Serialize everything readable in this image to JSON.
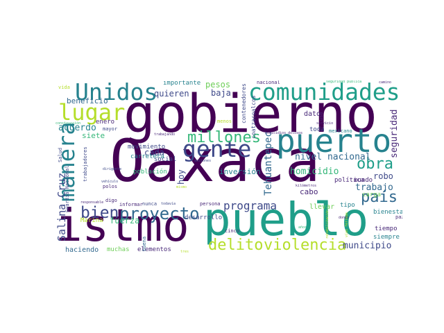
{
  "palette": {
    "dark_purple": "#440154",
    "purple": "#482878",
    "indigo": "#3e4989",
    "blue": "#31688e",
    "teal": "#26828e",
    "green_teal": "#1f9e89",
    "green": "#35b779",
    "light_green": "#6ece58",
    "yellow_green": "#b5de2b"
  },
  "words": [
    {
      "text": "Oaxaca",
      "color": "#440154"
    },
    {
      "text": "gobierno",
      "color": "#440154"
    },
    {
      "text": "istmo",
      "color": "#440154"
    },
    {
      "text": "pueblo",
      "color": "#1f9e89"
    },
    {
      "text": "comunidades",
      "color": "#1f9e89"
    },
    {
      "text": "puerto",
      "color": "#26828e"
    },
    {
      "text": "Unidos",
      "color": "#26828e"
    },
    {
      "text": "lugar",
      "color": "#b5de2b"
    },
    {
      "text": "gente",
      "color": "#3e4989"
    },
    {
      "text": "manera",
      "color": "#26828e"
    },
    {
      "text": "proyecto",
      "color": "#31688e"
    },
    {
      "text": "bien",
      "color": "#3e4989"
    },
    {
      "text": "millones",
      "color": "#35b779"
    },
    {
      "text": "violencia",
      "color": "#b5de2b"
    },
    {
      "text": "delito",
      "color": "#b5de2b"
    },
    {
      "text": "obra",
      "color": "#1f9e89"
    },
    {
      "text": "país",
      "color": "#31688e"
    },
    {
      "text": "programa",
      "color": "#3e4989"
    },
    {
      "text": "Salina Cruz",
      "color": "#3e4989"
    },
    {
      "text": "Tehuantepec",
      "color": "#31688e"
    },
    {
      "text": "nivel nacional",
      "color": "#31688e"
    },
    {
      "text": "seguridad",
      "color": "#482878"
    },
    {
      "text": "municipio",
      "color": "#3e4989"
    },
    {
      "text": "trabajo",
      "color": "#31688e"
    },
    {
      "text": "homicidio",
      "color": "#35b779"
    },
    {
      "text": "acuerdo",
      "color": "#26828e"
    },
    {
      "text": "beneficio",
      "color": "#31688e"
    },
    {
      "text": "fuerza",
      "color": "#35b779"
    },
    {
      "text": "quieren",
      "color": "#3e4989"
    },
    {
      "text": "baja",
      "color": "#3e4989"
    },
    {
      "text": "pesos",
      "color": "#6ece58"
    },
    {
      "text": "cada",
      "color": "#3e4989"
    },
    {
      "text": "hoy",
      "color": "#3e4989"
    },
    {
      "text": "robo",
      "color": "#3e4989"
    },
    {
      "text": "cabo",
      "color": "#482878"
    },
    {
      "text": "inversión",
      "color": "#26828e"
    },
    {
      "text": "importante",
      "color": "#26828e"
    },
    {
      "text": "social",
      "color": "#3e4989"
    },
    {
      "text": "movimiento",
      "color": "#3e4989"
    },
    {
      "text": "carretera",
      "color": "#26828e"
    },
    {
      "text": "siete",
      "color": "#35b779"
    },
    {
      "text": "enero",
      "color": "#482878"
    },
    {
      "text": "mayor",
      "color": "#3e4989"
    },
    {
      "text": "dato",
      "color": "#482878"
    },
    {
      "text": "toda",
      "color": "#3e4989"
    },
    {
      "text": "mexicano",
      "color": "#26828e"
    },
    {
      "text": "política",
      "color": "#482878"
    },
    {
      "text": "media",
      "color": "#3e4989"
    },
    {
      "text": "mundo",
      "color": "#482878"
    },
    {
      "text": "llevar",
      "color": "#6ece58"
    },
    {
      "text": "tipo",
      "color": "#26828e"
    },
    {
      "text": "carga",
      "color": "#6ece58"
    },
    {
      "text": "bienestar",
      "color": "#26828e"
    },
    {
      "text": "paz",
      "color": "#482878"
    },
    {
      "text": "tiempo",
      "color": "#482878"
    },
    {
      "text": "siempre",
      "color": "#26828e"
    },
    {
      "text": "población",
      "color": "#35b779"
    },
    {
      "text": "informar",
      "color": "#482878"
    },
    {
      "text": "nunca",
      "color": "#3e4989"
    },
    {
      "text": "todavía",
      "color": "#3e4989"
    },
    {
      "text": "desarrollo",
      "color": "#3e4989"
    },
    {
      "text": "persona",
      "color": "#482878"
    },
    {
      "text": "cinco",
      "color": "#482878"
    },
    {
      "text": "haciendo",
      "color": "#31688e"
    },
    {
      "text": "muchas",
      "color": "#6ece58"
    },
    {
      "text": "elementos",
      "color": "#482878"
    },
    {
      "text": "polos",
      "color": "#482878"
    },
    {
      "text": "digo",
      "color": "#482878"
    },
    {
      "text": "Marina",
      "color": "#b5de2b"
    },
    {
      "text": "Salud",
      "color": "#3e4989"
    },
    {
      "text": "trabajadores",
      "color": "#3e4989"
    },
    {
      "text": "Guardia Nacional",
      "color": "#3e4989"
    },
    {
      "text": "buena",
      "color": "#31688e"
    },
    {
      "text": "contenedores",
      "color": "#3e4989"
    },
    {
      "text": "coatzacoalcos",
      "color": "#3e4989"
    },
    {
      "text": "uso",
      "color": "#482878"
    },
    {
      "text": "nacional",
      "color": "#482878"
    },
    {
      "text": "menos",
      "color": "#b5de2b"
    },
    {
      "text": "vida",
      "color": "#b5de2b"
    },
    {
      "text": "camino",
      "color": "#482878"
    },
    {
      "text": "seguridad pública",
      "color": "#35b779"
    },
    {
      "text": "construcción",
      "color": "#35b779"
    },
    {
      "text": "trabajando",
      "color": "#482878"
    },
    {
      "text": "homicidios dolosos",
      "color": "#482878"
    },
    {
      "text": "servicio",
      "color": "#482878"
    },
    {
      "text": "mismo",
      "color": "#b5de2b"
    },
    {
      "text": "acciones",
      "color": "#3e4989"
    },
    {
      "text": "dirigente",
      "color": "#3e4989"
    },
    {
      "text": "vehículo",
      "color": "#3e4989"
    },
    {
      "text": "responsable",
      "color": "#482878"
    },
    {
      "text": "kilómetros",
      "color": "#482878"
    },
    {
      "text": "años",
      "color": "#35b779"
    },
    {
      "text": "rehabilitación",
      "color": "#b5de2b"
    },
    {
      "text": "donde",
      "color": "#482878"
    },
    {
      "text": "vías férreas",
      "color": "#b5de2b"
    },
    {
      "text": "tres",
      "color": "#b5de2b"
    }
  ]
}
